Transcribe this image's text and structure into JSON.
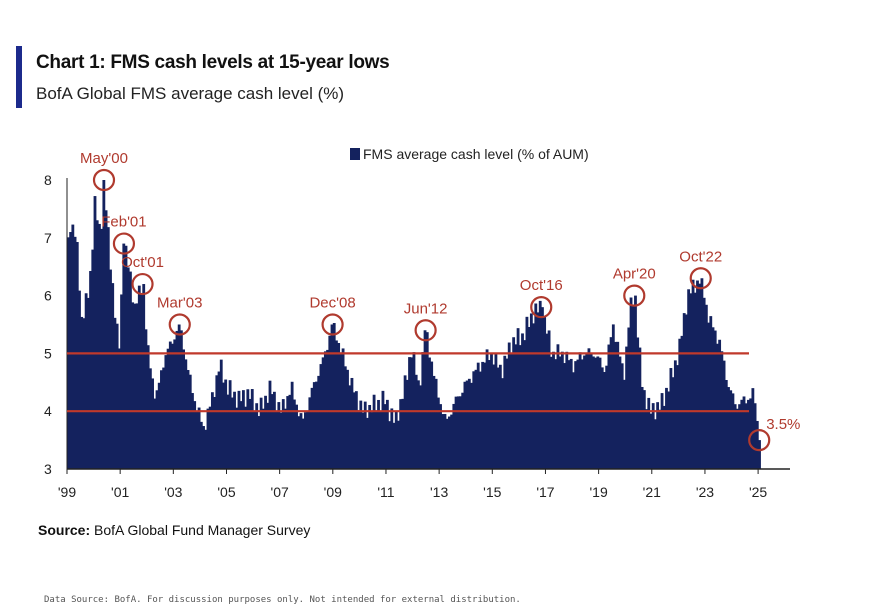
{
  "title": "Chart 1: FMS cash levels at 15-year lows",
  "subtitle": "BofA Global FMS average cash level (%)",
  "source_label": "Source:",
  "source_text": "BofA Global Fund Manager Survey",
  "footer": "Data Source: BofA. For discussion purposes only. Not intended for external distribution.",
  "colors": {
    "bar": "#14225e",
    "reference": "#c0392b",
    "annotation": "#b03a2e",
    "accent": "#1c2a8c"
  },
  "chart_data": {
    "type": "bar",
    "title": "Chart 1: FMS cash levels at 15-year lows",
    "subtitle": "BofA Global FMS average cash level (%)",
    "legend": "FMS average cash level (% of AUM)",
    "ylim": [
      3,
      8
    ],
    "xlim": [
      1999,
      2026.2
    ],
    "yticks": [
      3,
      4,
      5,
      6,
      7,
      8
    ],
    "xticks": [
      {
        "label": "'99",
        "year": 1999
      },
      {
        "label": "'01",
        "year": 2001
      },
      {
        "label": "'03",
        "year": 2003
      },
      {
        "label": "'05",
        "year": 2005
      },
      {
        "label": "'07",
        "year": 2007
      },
      {
        "label": "'09",
        "year": 2009
      },
      {
        "label": "'11",
        "year": 2011
      },
      {
        "label": "'13",
        "year": 2013
      },
      {
        "label": "'15",
        "year": 2015
      },
      {
        "label": "'17",
        "year": 2017
      },
      {
        "label": "'19",
        "year": 2019
      },
      {
        "label": "'21",
        "year": 2021
      },
      {
        "label": "'23",
        "year": 2023
      },
      {
        "label": "'25",
        "year": 2025
      }
    ],
    "reference_lines": [
      5,
      4
    ],
    "frequency": "monthly",
    "start_year": 1999.0,
    "anchors": [
      [
        1999.0,
        6.9
      ],
      [
        1999.1,
        7.3
      ],
      [
        1999.3,
        7.0
      ],
      [
        1999.5,
        5.6
      ],
      [
        1999.8,
        6.1
      ],
      [
        2000.0,
        7.6
      ],
      [
        2000.2,
        7.0
      ],
      [
        2000.35,
        8.0
      ],
      [
        2000.5,
        7.0
      ],
      [
        2000.7,
        6.0
      ],
      [
        2000.9,
        5.0
      ],
      [
        2001.1,
        6.9
      ],
      [
        2001.3,
        6.4
      ],
      [
        2001.5,
        5.8
      ],
      [
        2001.8,
        6.2
      ],
      [
        2002.0,
        5.0
      ],
      [
        2002.3,
        4.2
      ],
      [
        2002.6,
        4.9
      ],
      [
        2002.9,
        5.2
      ],
      [
        2003.2,
        5.5
      ],
      [
        2003.5,
        4.7
      ],
      [
        2003.8,
        4.1
      ],
      [
        2004.1,
        3.7
      ],
      [
        2004.4,
        4.2
      ],
      [
        2004.7,
        4.8
      ],
      [
        2005.0,
        4.4
      ],
      [
        2005.4,
        4.2
      ],
      [
        2005.8,
        4.3
      ],
      [
        2006.2,
        4.0
      ],
      [
        2006.6,
        4.4
      ],
      [
        2007.0,
        4.0
      ],
      [
        2007.4,
        4.4
      ],
      [
        2007.8,
        3.8
      ],
      [
        2008.2,
        4.4
      ],
      [
        2008.6,
        4.9
      ],
      [
        2008.95,
        5.5
      ],
      [
        2009.3,
        5.0
      ],
      [
        2009.7,
        4.4
      ],
      [
        2010.1,
        4.0
      ],
      [
        2010.5,
        4.1
      ],
      [
        2010.9,
        4.2
      ],
      [
        2011.3,
        3.8
      ],
      [
        2011.7,
        4.5
      ],
      [
        2011.9,
        5.1
      ],
      [
        2012.2,
        4.4
      ],
      [
        2012.45,
        5.4
      ],
      [
        2012.8,
        4.5
      ],
      [
        2013.2,
        3.8
      ],
      [
        2013.6,
        4.2
      ],
      [
        2014.0,
        4.5
      ],
      [
        2014.5,
        4.8
      ],
      [
        2014.9,
        5.0
      ],
      [
        2015.3,
        4.7
      ],
      [
        2015.7,
        5.2
      ],
      [
        2016.1,
        5.3
      ],
      [
        2016.5,
        5.7
      ],
      [
        2016.8,
        5.8
      ],
      [
        2017.2,
        5.0
      ],
      [
        2017.6,
        5.0
      ],
      [
        2018.0,
        4.8
      ],
      [
        2018.4,
        5.0
      ],
      [
        2018.8,
        5.0
      ],
      [
        2019.2,
        4.7
      ],
      [
        2019.5,
        5.5
      ],
      [
        2019.9,
        4.6
      ],
      [
        2020.15,
        5.8
      ],
      [
        2020.3,
        6.0
      ],
      [
        2020.6,
        4.4
      ],
      [
        2020.9,
        4.0
      ],
      [
        2021.3,
        4.1
      ],
      [
        2021.7,
        4.6
      ],
      [
        2022.0,
        5.1
      ],
      [
        2022.3,
        6.0
      ],
      [
        2022.6,
        6.2
      ],
      [
        2022.8,
        6.3
      ],
      [
        2023.1,
        5.6
      ],
      [
        2023.5,
        5.2
      ],
      [
        2023.8,
        4.5
      ],
      [
        2024.1,
        4.1
      ],
      [
        2024.5,
        4.2
      ],
      [
        2024.8,
        4.3
      ],
      [
        2025.0,
        3.5
      ]
    ],
    "annotations": [
      {
        "label": "May'00",
        "x": 2000.35,
        "y": 8.0,
        "label_pos": "above"
      },
      {
        "label": "Feb'01",
        "x": 2001.1,
        "y": 6.9,
        "label_pos": "above"
      },
      {
        "label": "Oct'01",
        "x": 2001.8,
        "y": 6.2,
        "label_pos": "above"
      },
      {
        "label": "Mar'03",
        "x": 2003.2,
        "y": 5.5,
        "label_pos": "above"
      },
      {
        "label": "Dec'08",
        "x": 2008.95,
        "y": 5.5,
        "label_pos": "above"
      },
      {
        "label": "Jun'12",
        "x": 2012.45,
        "y": 5.4,
        "label_pos": "above"
      },
      {
        "label": "Oct'16",
        "x": 2016.8,
        "y": 5.8,
        "label_pos": "above"
      },
      {
        "label": "Apr'20",
        "x": 2020.3,
        "y": 6.0,
        "label_pos": "above"
      },
      {
        "label": "Oct'22",
        "x": 2022.8,
        "y": 6.3,
        "label_pos": "above"
      },
      {
        "label": "3.5%",
        "x": 2025.0,
        "y": 3.5,
        "label_pos": "right"
      }
    ]
  }
}
